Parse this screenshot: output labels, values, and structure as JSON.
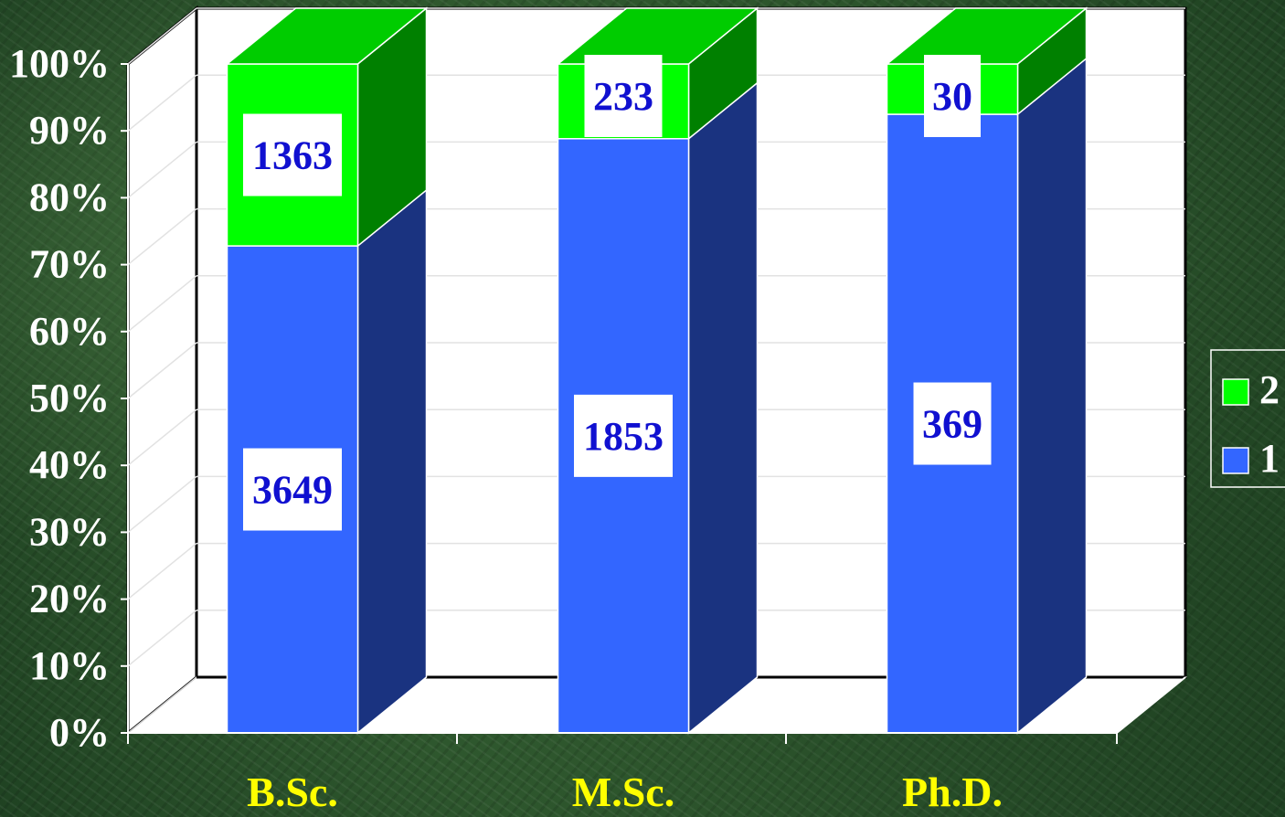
{
  "chart_data": {
    "type": "bar",
    "stacked": "percent",
    "three_d": true,
    "categories": [
      "B.Sc.",
      "M.Sc.",
      "Ph.D."
    ],
    "series": [
      {
        "name": "1",
        "values": [
          3649,
          1853,
          369
        ],
        "color": "#3366ff",
        "side_color": "#1a3380"
      },
      {
        "name": "2",
        "values": [
          1363,
          233,
          30
        ],
        "color": "#00ff00",
        "side_color": "#008000",
        "top_color": "#00cc00"
      }
    ],
    "y_ticks": [
      "0%",
      "10%",
      "20%",
      "30%",
      "40%",
      "50%",
      "60%",
      "70%",
      "80%",
      "90%",
      "100%"
    ],
    "ylim": [
      0,
      100
    ],
    "grid": true,
    "legend": {
      "position": "right",
      "order": [
        "2",
        "1"
      ]
    },
    "title": "",
    "xlabel": "",
    "ylabel": ""
  }
}
